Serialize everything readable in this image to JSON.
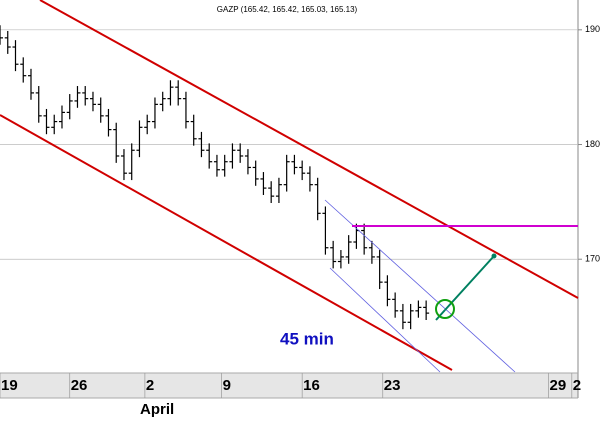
{
  "chart_data": {
    "type": "ohlc",
    "title": "GAZP (165.42, 165.42, 165.03, 165.13)",
    "annotation": "45 min",
    "x_sublabel": "April",
    "x": [
      0,
      0.5,
      1,
      1.5,
      2,
      2.5,
      3,
      3.5,
      4,
      4.5,
      5,
      5.5,
      6,
      6.5,
      7,
      7.5,
      8,
      8.5,
      9,
      9.5,
      10,
      10.5,
      11,
      11.5,
      12,
      12.5,
      13,
      13.5,
      14,
      14.5,
      15,
      15.5,
      16,
      16.5,
      17,
      17.5,
      18,
      18.5,
      19,
      19.5,
      20,
      20.5,
      21,
      21.5,
      22,
      22.5,
      23,
      23.5,
      24,
      24.5,
      25,
      25.5,
      26,
      26.5,
      27,
      27.5
    ],
    "open": [
      189.8,
      189.3,
      188.5,
      187,
      186,
      184.5,
      182.5,
      181.5,
      182,
      182.8,
      183.8,
      184.5,
      184,
      183.5,
      182.5,
      181.3,
      179,
      177.5,
      179.5,
      181.5,
      182,
      183.5,
      184,
      185,
      184,
      182,
      180.5,
      179.5,
      178.5,
      177.8,
      178.5,
      179.5,
      179,
      178,
      177,
      176.2,
      175.5,
      176.5,
      178.5,
      178,
      177.5,
      176.5,
      174,
      171,
      169.8,
      170.2,
      171.5,
      172.5,
      171,
      170.2,
      168,
      166.5,
      165.5,
      164.5,
      165.5,
      165.8
    ],
    "high": [
      190.4,
      189.9,
      189.1,
      187.6,
      186.6,
      185.1,
      183.1,
      182.6,
      183.4,
      184.4,
      185.1,
      185.1,
      184.6,
      184.1,
      183.1,
      181.9,
      179.6,
      180.1,
      182.1,
      182.6,
      184.1,
      184.6,
      185.6,
      185.6,
      184.6,
      182.6,
      181.1,
      180.1,
      179.1,
      179.1,
      180.1,
      180.1,
      179.6,
      178.6,
      177.6,
      176.8,
      177.1,
      179.1,
      179.1,
      178.6,
      178.1,
      177.1,
      174.6,
      171.6,
      170.8,
      172.1,
      173.1,
      173.1,
      171.6,
      170.8,
      168.6,
      167.1,
      166.1,
      166.1,
      166.4,
      166.4
    ],
    "low": [
      188.7,
      187.9,
      186.4,
      185.4,
      183.9,
      181.9,
      180.9,
      180.9,
      181.4,
      182.2,
      183.2,
      183.4,
      182.9,
      181.9,
      180.7,
      178.4,
      176.9,
      176.9,
      178.9,
      180.9,
      181.4,
      182.9,
      183.4,
      183.4,
      181.4,
      179.9,
      178.9,
      177.9,
      177.2,
      177.2,
      177.9,
      178.4,
      177.4,
      176.4,
      175.6,
      174.9,
      174.9,
      175.9,
      177.4,
      176.9,
      175.9,
      173.4,
      170.4,
      169.2,
      169.2,
      169.6,
      170.9,
      170.4,
      169.6,
      167.4,
      165.9,
      164.9,
      163.9,
      163.9,
      164.9,
      164.7
    ],
    "close": [
      189.3,
      188.5,
      187,
      186,
      184.5,
      182.5,
      181.5,
      182,
      182.8,
      183.8,
      184.5,
      184,
      183.5,
      182.5,
      181.3,
      179,
      177.5,
      179.5,
      181.5,
      182,
      183.5,
      184,
      185,
      184,
      182,
      180.5,
      179.5,
      178.5,
      177.8,
      178.5,
      179.5,
      179,
      178,
      177,
      176.2,
      175.5,
      176.5,
      178.5,
      178,
      177.5,
      176.5,
      174,
      171,
      169.8,
      170.2,
      171.5,
      172.5,
      171,
      170.2,
      168,
      166.5,
      165.5,
      164.5,
      165.5,
      165.8,
      165.3
    ],
    "color": "#000000",
    "xlim": [
      0,
      37.3
    ],
    "xticks": [
      {
        "value": 0,
        "label": "19"
      },
      {
        "value": 4.5,
        "label": "26"
      },
      {
        "value": 9.35,
        "label": "2"
      },
      {
        "value": 14.3,
        "label": "9"
      },
      {
        "value": 19.5,
        "label": "16"
      },
      {
        "value": 24.7,
        "label": "23"
      },
      {
        "value": 35.4,
        "label": "29"
      },
      {
        "value": 36.9,
        "label": "2"
      }
    ],
    "ylim": [
      157.9,
      192.6
    ],
    "yticks": [
      170,
      180,
      190
    ],
    "grid": true
  }
}
